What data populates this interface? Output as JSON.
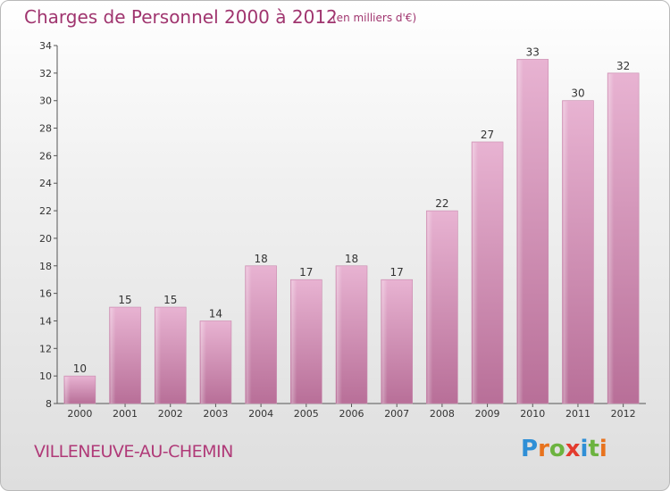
{
  "header": {
    "title": "Charges de Personnel 2000 à 2012",
    "subtitle": "(en milliers d'€)"
  },
  "footer": {
    "location": "VILLENEUVE-AU-CHEMIN",
    "logo_text": "Proxiti",
    "logo_letters": [
      {
        "ch": "P",
        "color": "#2f8fd6"
      },
      {
        "ch": "r",
        "color": "#e8731e"
      },
      {
        "ch": "o",
        "color": "#6cb33f"
      },
      {
        "ch": "x",
        "color": "#e33b2e"
      },
      {
        "ch": "i",
        "color": "#2f8fd6"
      },
      {
        "ch": "t",
        "color": "#6cb33f"
      },
      {
        "ch": "i",
        "color": "#e8731e"
      }
    ]
  },
  "chart_data": {
    "type": "bar",
    "title": "Charges de Personnel 2000 à 2012",
    "subtitle": "(en milliers d'€)",
    "categories": [
      "2000",
      "2001",
      "2002",
      "2003",
      "2004",
      "2005",
      "2006",
      "2007",
      "2008",
      "2009",
      "2010",
      "2011",
      "2012"
    ],
    "values": [
      10,
      15,
      15,
      14,
      18,
      17,
      18,
      17,
      22,
      27,
      33,
      30,
      32
    ],
    "ylim": [
      8,
      34
    ],
    "yticks": [
      8,
      10,
      12,
      14,
      16,
      18,
      20,
      22,
      24,
      26,
      28,
      30,
      32,
      34
    ],
    "grid": false,
    "bar_color": "#d690b8",
    "title_color": "#a0356f",
    "data_labels": true
  }
}
